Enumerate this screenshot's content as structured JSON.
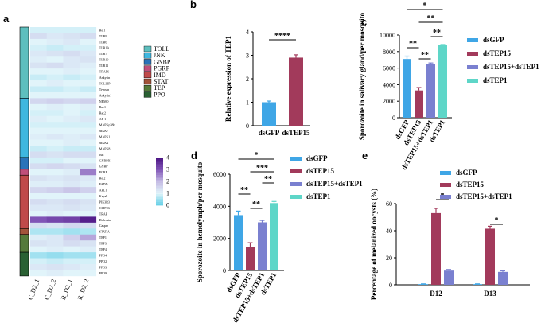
{
  "panels": {
    "a": "a",
    "b": "b",
    "c": "c",
    "d": "d",
    "e": "e"
  },
  "chart_data": [
    {
      "panel": "a",
      "type": "heatmap",
      "columns": [
        "C_D2_1",
        "C_D2_2",
        "R_D2_1",
        "R_D2_2"
      ],
      "rows": [
        "Rel1",
        "TLR9",
        "TLR6",
        "TLR1A",
        "TLR7",
        "TLR10",
        "TLR11",
        "TRAF6",
        "Ankyrin",
        "TOLLIP",
        "Trypsin",
        "Ankyrin1",
        "NEMO",
        "Rac1",
        "Rac2",
        "AP-1",
        "MAPKp38b",
        "MKK7",
        "MAPK1",
        "MKK4",
        "MAPK8",
        "Jun",
        "GNBPB1",
        "GNBP",
        "PGRP",
        "Rel2",
        "FADD",
        "APL1",
        "Kayak",
        "PIK3R3",
        "CLIPC6",
        "TRAF",
        "Defensin",
        "Caspar",
        "STAT-A",
        "TEP1",
        "TEP3",
        "TEP4",
        "PPO4",
        "PPO2",
        "PPO3",
        "PPO9"
      ],
      "values": [
        [
          0.9,
          0.9,
          0.9,
          0.9
        ],
        [
          1.4,
          1.2,
          1.3,
          1.4
        ],
        [
          1.0,
          1.1,
          1.2,
          1.0
        ],
        [
          0.9,
          0.8,
          0.9,
          0.9
        ],
        [
          1.2,
          1.3,
          1.4,
          1.2
        ],
        [
          1.1,
          1.0,
          1.2,
          1.3
        ],
        [
          1.3,
          1.4,
          1.2,
          1.1
        ],
        [
          1.0,
          1.0,
          1.1,
          1.0
        ],
        [
          0.8,
          0.9,
          0.8,
          0.9
        ],
        [
          1.0,
          1.1,
          1.0,
          1.0
        ],
        [
          0.8,
          0.8,
          0.9,
          0.8
        ],
        [
          1.0,
          1.0,
          1.0,
          1.0
        ],
        [
          1.5,
          1.6,
          1.5,
          1.6
        ],
        [
          1.0,
          1.1,
          1.0,
          1.1
        ],
        [
          0.9,
          0.9,
          1.0,
          0.9
        ],
        [
          1.1,
          1.0,
          1.1,
          1.2
        ],
        [
          0.9,
          0.9,
          0.9,
          0.9
        ],
        [
          1.0,
          1.0,
          1.0,
          1.0
        ],
        [
          1.1,
          1.2,
          1.1,
          1.2
        ],
        [
          1.0,
          1.0,
          1.1,
          1.0
        ],
        [
          0.8,
          0.9,
          0.8,
          0.8
        ],
        [
          1.4,
          1.3,
          1.4,
          1.4
        ],
        [
          0.9,
          0.9,
          1.0,
          1.0
        ],
        [
          1.4,
          1.5,
          1.4,
          1.3
        ],
        [
          1.0,
          1.0,
          1.1,
          2.6
        ],
        [
          1.3,
          1.2,
          1.3,
          1.2
        ],
        [
          1.1,
          1.1,
          1.2,
          1.1
        ],
        [
          1.5,
          1.6,
          1.8,
          1.6
        ],
        [
          1.0,
          1.0,
          1.0,
          1.0
        ],
        [
          1.4,
          1.3,
          1.4,
          1.3
        ],
        [
          1.2,
          1.2,
          1.3,
          1.2
        ],
        [
          1.0,
          1.1,
          1.0,
          1.0
        ],
        [
          3.0,
          3.2,
          3.3,
          3.8
        ],
        [
          1.4,
          1.3,
          1.5,
          1.4
        ],
        [
          0.6,
          0.6,
          0.5,
          0.6
        ],
        [
          1.1,
          1.2,
          1.6,
          2.2
        ],
        [
          1.3,
          1.2,
          1.4,
          1.3
        ],
        [
          1.0,
          1.1,
          1.0,
          1.1
        ],
        [
          0.5,
          0.4,
          0.5,
          0.5
        ],
        [
          0.9,
          0.8,
          0.9,
          0.9
        ],
        [
          1.2,
          1.3,
          1.2,
          1.1
        ],
        [
          1.0,
          1.1,
          1.0,
          1.0
        ]
      ],
      "scale": {
        "min": 0,
        "max": 4,
        "ticks": [
          "0",
          "1",
          "2",
          "3",
          "4"
        ]
      },
      "groups": [
        {
          "name": "TOLL",
          "color": "#5ebfbe",
          "rows": 12
        },
        {
          "name": "JNK",
          "color": "#3fb7df",
          "rows": 10
        },
        {
          "name": "GNBP",
          "color": "#2a73b9",
          "rows": 2
        },
        {
          "name": "PGRP",
          "color": "#c04f7a",
          "rows": 1
        },
        {
          "name": "IMD",
          "color": "#c04a4a",
          "rows": 9
        },
        {
          "name": "STAT",
          "color": "#a2533a",
          "rows": 1
        },
        {
          "name": "TEP",
          "color": "#557a3a",
          "rows": 3
        },
        {
          "name": "PPO",
          "color": "#2a6133",
          "rows": 4
        }
      ]
    },
    {
      "panel": "b",
      "type": "bar",
      "categories": [
        "dsGFP",
        "dsTEP15"
      ],
      "values": [
        1.0,
        2.9
      ],
      "errors": [
        0.05,
        0.12
      ],
      "colors": [
        "#3fa6e6",
        "#a23a5b"
      ],
      "ylabel": "Relative expression of TEP1",
      "ylim": [
        0,
        4
      ],
      "yticks": [
        "0",
        "1",
        "2",
        "3",
        "4"
      ],
      "annotations": [
        {
          "text": "****",
          "from": 0,
          "to": 1
        }
      ]
    },
    {
      "panel": "c",
      "type": "bar",
      "categories": [
        "dsGFP",
        "dsTEP15",
        "dsTEP15+dsTEP1",
        "dsTEP1"
      ],
      "values": [
        7100,
        3300,
        6500,
        8750
      ],
      "errors": [
        350,
        350,
        120,
        100
      ],
      "colors": [
        "#3fa6e6",
        "#a23a5b",
        "#7a80d0",
        "#5ed6c8"
      ],
      "ylabel": "Sporozoite in salivary gland/per mosquito",
      "ylim": [
        0,
        10000
      ],
      "yticks": [
        "0",
        "2000",
        "4000",
        "6000",
        "8000",
        "10000"
      ],
      "legend": [
        "dsGFP",
        "dsTEP15",
        "dsTEP15+dsTEP1",
        "dsTEP1"
      ],
      "annotations": [
        {
          "text": "*",
          "from": 0,
          "to": 3
        },
        {
          "text": "**",
          "from": 1,
          "to": 3
        },
        {
          "text": "**",
          "from": 0,
          "to": 1
        },
        {
          "text": "**",
          "from": 2,
          "to": 3
        },
        {
          "text": "**",
          "from": 1,
          "to": 2
        }
      ]
    },
    {
      "panel": "d",
      "type": "bar",
      "categories": [
        "dsGFP",
        "dsTEP15",
        "dsTEP15+dsTEP1",
        "dsTEP1"
      ],
      "values": [
        3450,
        1450,
        3000,
        4200
      ],
      "errors": [
        250,
        280,
        120,
        100
      ],
      "colors": [
        "#3fa6e6",
        "#a23a5b",
        "#7a80d0",
        "#5ed6c8"
      ],
      "ylabel": "Sporozoite in hemolymph/per mosquito",
      "ylim": [
        0,
        6000
      ],
      "yticks": [
        "0",
        "2000",
        "4000",
        "6000"
      ],
      "legend": [
        "dsGFP",
        "dsTEP15",
        "dsTEP15+dsTEP1",
        "dsTEP1"
      ],
      "annotations": [
        {
          "text": "*",
          "from": 0,
          "to": 3
        },
        {
          "text": "***",
          "from": 1,
          "to": 3
        },
        {
          "text": "**",
          "from": 0,
          "to": 1
        },
        {
          "text": "**",
          "from": 2,
          "to": 3
        },
        {
          "text": "**",
          "from": 1,
          "to": 2
        }
      ]
    },
    {
      "panel": "e",
      "type": "bar",
      "groups": [
        "D12",
        "D13"
      ],
      "series": [
        {
          "name": "dsGFP",
          "color": "#3fa6e6",
          "values": [
            0.5,
            0.5
          ],
          "errors": [
            0.2,
            0.2
          ]
        },
        {
          "name": "dsTEP15",
          "color": "#a23a5b",
          "values": [
            53,
            41.5
          ],
          "errors": [
            3.5,
            1.8
          ]
        },
        {
          "name": "dsTEP15+dsTEP1",
          "color": "#7a80d0",
          "values": [
            10.5,
            9.5
          ],
          "errors": [
            0.8,
            0.8
          ]
        }
      ],
      "ylabel": "Percentage of melanized oocysts (%)",
      "ylim": [
        0,
        60
      ],
      "yticks": [
        "0",
        "20",
        "40",
        "60"
      ],
      "annotations": [
        {
          "text": "*",
          "group": 0,
          "from": 1,
          "to": 2
        },
        {
          "text": "*",
          "group": 1,
          "from": 1,
          "to": 2
        }
      ]
    }
  ]
}
